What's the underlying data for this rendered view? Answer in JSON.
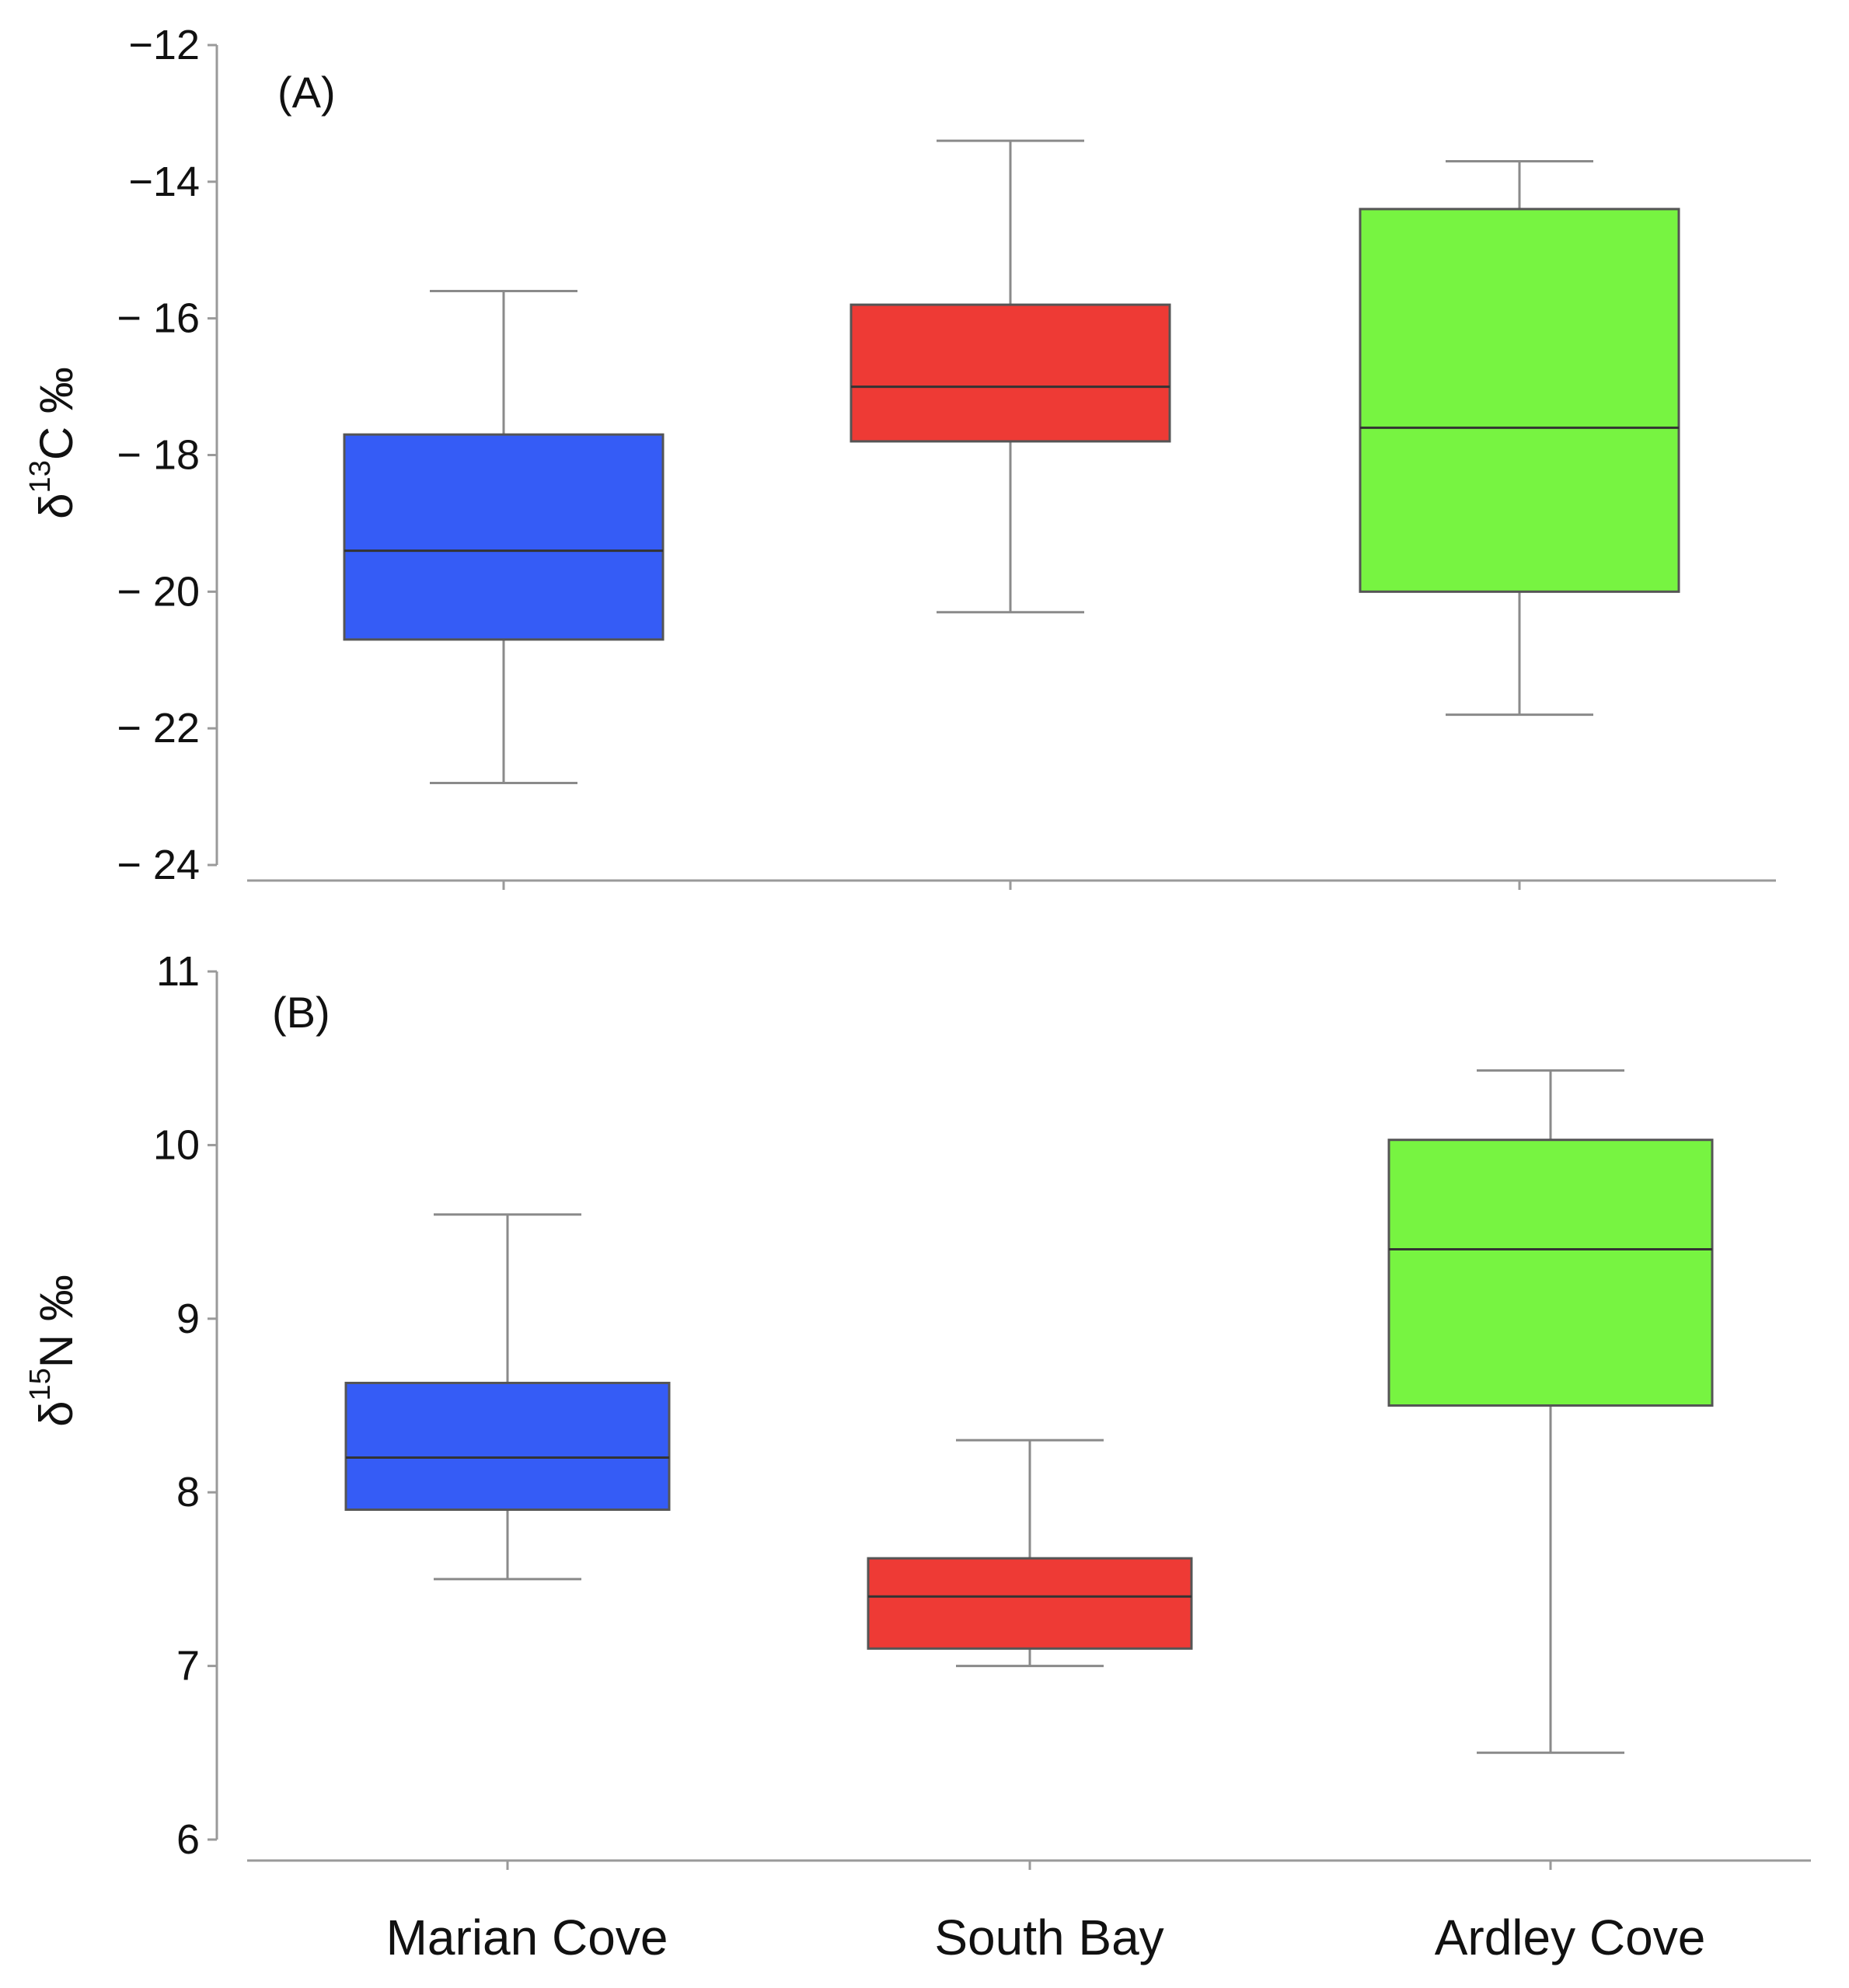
{
  "chart_data": [
    {
      "type": "box",
      "panel_label": "(A)",
      "ylabel": {
        "prefix": "δ",
        "superscript": "13",
        "main": "C ‰"
      },
      "ylim": [
        -24,
        -12
      ],
      "yticks": [
        -12,
        -14,
        -16,
        -18,
        -20,
        -22,
        -24
      ],
      "ytick_labels": [
        "−12",
        "−14",
        "− 16",
        "− 18",
        "− 20",
        "− 22",
        "− 24"
      ],
      "categories": [
        "Marian Cove",
        "South Bay",
        "Ardley Cove"
      ],
      "colors": [
        "#355cf6",
        "#ee3a35",
        "#77f441"
      ],
      "boxes": [
        {
          "category": "Marian Cove",
          "whisker_low": -22.8,
          "q1": -20.7,
          "median": -19.4,
          "q3": -17.7,
          "whisker_high": -15.6
        },
        {
          "category": "South Bay",
          "whisker_low": -20.3,
          "q1": -17.8,
          "median": -17.0,
          "q3": -15.8,
          "whisker_high": -13.4
        },
        {
          "category": "Ardley Cove",
          "whisker_low": -21.8,
          "q1": -20.0,
          "median": -17.6,
          "q3": -14.4,
          "whisker_high": -13.7
        }
      ]
    },
    {
      "type": "box",
      "panel_label": "(B)",
      "ylabel": {
        "prefix": "δ",
        "superscript": "15",
        "main": "N ‰"
      },
      "ylim": [
        6,
        11
      ],
      "yticks": [
        6,
        7,
        8,
        9,
        10,
        11
      ],
      "ytick_labels": [
        "6",
        "7",
        "8",
        "9",
        "10",
        "11"
      ],
      "categories": [
        "Marian Cove",
        "South Bay",
        "Ardley Cove"
      ],
      "colors": [
        "#355cf6",
        "#ee3a35",
        "#77f441"
      ],
      "boxes": [
        {
          "category": "Marian Cove",
          "whisker_low": 7.5,
          "q1": 7.9,
          "median": 8.2,
          "q3": 8.63,
          "whisker_high": 9.6
        },
        {
          "category": "South Bay",
          "whisker_low": 7.0,
          "q1": 7.1,
          "median": 7.4,
          "q3": 7.62,
          "whisker_high": 8.3
        },
        {
          "category": "Ardley Cove",
          "whisker_low": 6.5,
          "q1": 8.5,
          "median": 9.4,
          "q3": 10.03,
          "whisker_high": 10.43
        }
      ]
    }
  ]
}
